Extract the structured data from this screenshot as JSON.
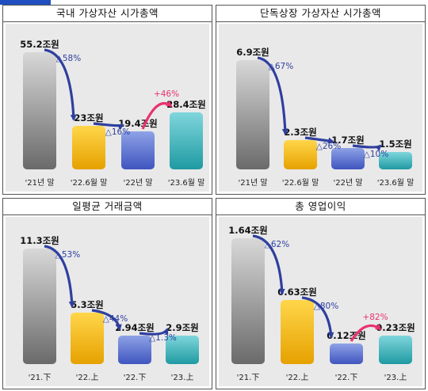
{
  "colors": {
    "bar1": [
      "#d8d8d8",
      "#6a6a6a"
    ],
    "bar2": [
      "#ffd64a",
      "#e6a100"
    ],
    "bar3": [
      "#8ea2e6",
      "#3f55bf"
    ],
    "bar4": [
      "#7fd6dc",
      "#1f9aa2"
    ],
    "arrow_down": "#2f3f9f",
    "arrow_up": "#e8336e"
  },
  "chart_data": [
    {
      "type": "bar",
      "title": "국내 가상자산 시가총액",
      "categories": [
        "'21년 말",
        "'22.6월 말",
        "'22년 말",
        "'23.6월 말"
      ],
      "values": [
        55.2,
        23,
        19.4,
        28.4
      ],
      "value_labels": [
        "55.2조원",
        "23조원",
        "19.4조원",
        "28.4조원"
      ],
      "changes": [
        {
          "label": "△58%",
          "direction": "down"
        },
        {
          "label": "△16%",
          "direction": "down"
        },
        {
          "label": "+46%",
          "direction": "up"
        }
      ]
    },
    {
      "type": "bar",
      "title": "단독상장 가상자산 시가총액",
      "categories": [
        "'21년 말",
        "'22.6월 말",
        "'22년 말",
        "'23.6월 말"
      ],
      "values": [
        6.9,
        2.3,
        1.7,
        1.5
      ],
      "value_labels": [
        "6.9조원",
        "2.3조원",
        "1.7조원",
        "1.5조원"
      ],
      "changes": [
        {
          "label": "△67%",
          "direction": "down"
        },
        {
          "label": "△26%",
          "direction": "down"
        },
        {
          "label": "△10%",
          "direction": "down"
        }
      ]
    },
    {
      "type": "bar",
      "title": "일평균 거래금액",
      "categories": [
        "'21.下",
        "'22.上",
        "'22.下",
        "'23.上"
      ],
      "values": [
        11.3,
        5.3,
        2.94,
        2.9
      ],
      "value_labels": [
        "11.3조원",
        "5.3조원",
        "2.94조원",
        "2.9조원"
      ],
      "changes": [
        {
          "label": "△53%",
          "direction": "down"
        },
        {
          "label": "△44%",
          "direction": "down"
        },
        {
          "label": "△1.3%",
          "direction": "down"
        }
      ]
    },
    {
      "type": "bar",
      "title": "총 영업이익",
      "categories": [
        "'21.下",
        "'22.上",
        "'22.下",
        "'23.上"
      ],
      "values": [
        1.64,
        0.63,
        0.12,
        0.23
      ],
      "value_labels": [
        "1.64조원",
        "0.63조원",
        "0.12조원",
        "0.23조원"
      ],
      "changes": [
        {
          "label": "△62%",
          "direction": "down"
        },
        {
          "label": "△80%",
          "direction": "down"
        },
        {
          "label": "+82%",
          "direction": "up"
        }
      ]
    }
  ]
}
